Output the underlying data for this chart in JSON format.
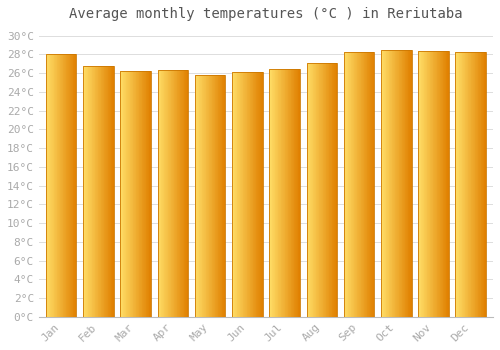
{
  "title": "Average monthly temperatures (°C ) in Reriutaba",
  "months": [
    "Jan",
    "Feb",
    "Mar",
    "Apr",
    "May",
    "Jun",
    "Jul",
    "Aug",
    "Sep",
    "Oct",
    "Nov",
    "Dec"
  ],
  "temperatures": [
    28.0,
    26.8,
    26.2,
    26.3,
    25.8,
    26.1,
    26.4,
    27.1,
    28.3,
    28.5,
    28.4,
    28.3
  ],
  "bar_color_left": "#FFCC44",
  "bar_color_right": "#E8900A",
  "bar_edge_color": "#CC7700",
  "background_color": "#ffffff",
  "plot_bg_color": "#ffffff",
  "ylim": [
    0,
    31
  ],
  "yticks": [
    0,
    2,
    4,
    6,
    8,
    10,
    12,
    14,
    16,
    18,
    20,
    22,
    24,
    26,
    28,
    30
  ],
  "ytick_labels": [
    "0°C",
    "2°C",
    "4°C",
    "6°C",
    "8°C",
    "10°C",
    "12°C",
    "14°C",
    "16°C",
    "18°C",
    "20°C",
    "22°C",
    "24°C",
    "26°C",
    "28°C",
    "30°C"
  ],
  "title_fontsize": 10,
  "tick_fontsize": 8,
  "tick_color": "#aaaaaa",
  "grid_color": "#dddddd",
  "title_color": "#555555",
  "bar_width": 0.82
}
